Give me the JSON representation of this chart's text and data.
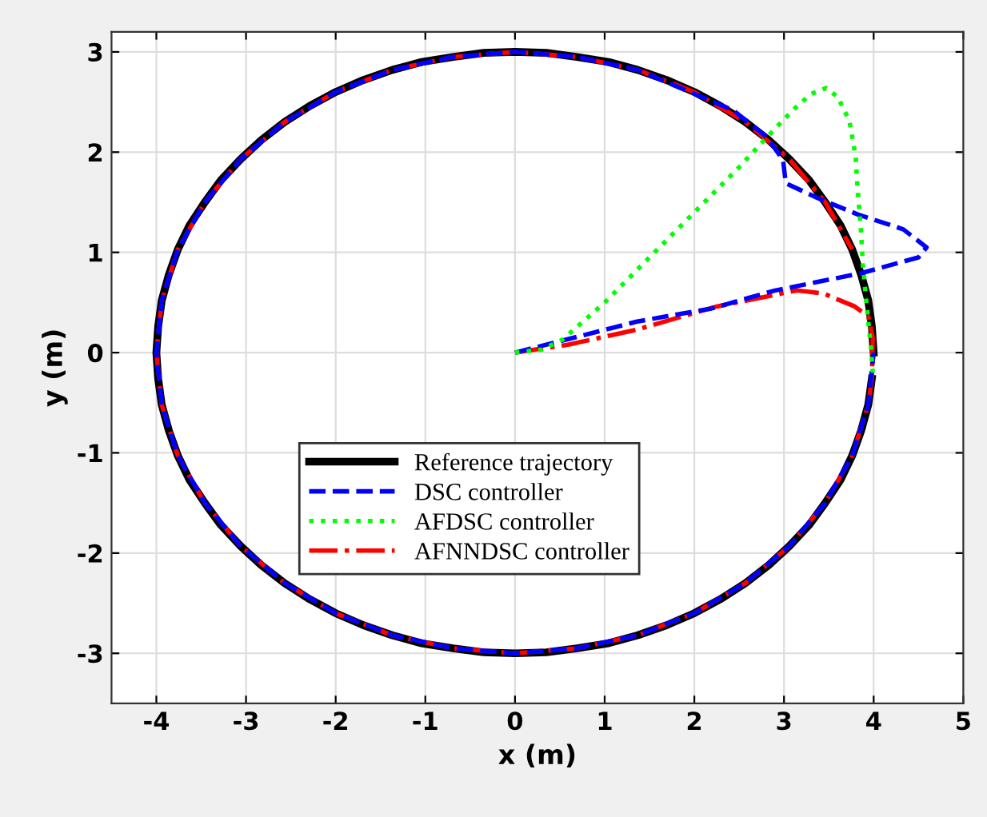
{
  "chart_data": {
    "type": "line",
    "xlabel": "x (m)",
    "ylabel": "y (m)",
    "xlim": [
      -4.5,
      5
    ],
    "ylim": [
      -3.5,
      3.2
    ],
    "xticks": [
      -4,
      -3,
      -2,
      -1,
      0,
      1,
      2,
      3,
      4,
      5
    ],
    "yticks": [
      -3,
      -2,
      -1,
      0,
      1,
      2,
      3
    ],
    "grid": true,
    "legend": "center",
    "marker": "none",
    "series": [
      {
        "name": "DSC controller",
        "color": "#0000ff",
        "line_style": "dashed",
        "x": [
          0,
          0.53,
          1.36,
          2.19,
          2.9,
          3.85,
          4.5,
          4.59,
          4.33,
          3.82,
          3.38,
          3.02,
          2.99,
          2.81,
          2.43,
          1.37,
          0.69,
          0.0,
          -0.69,
          -1.37,
          -2.0,
          -2.57,
          -3.06,
          -3.46,
          -3.76,
          -3.94,
          -4.0,
          -3.94,
          -3.76,
          -3.46,
          -3.06,
          -2.57,
          -2.0,
          -1.37,
          -0.69,
          0.0,
          0.69,
          1.37,
          2.0,
          2.57,
          3.06,
          3.46,
          3.76,
          3.94,
          4.0
        ],
        "values": [
          0,
          0.12,
          0.31,
          0.44,
          0.62,
          0.79,
          0.95,
          1.05,
          1.23,
          1.38,
          1.54,
          1.69,
          1.92,
          2.15,
          2.42,
          2.82,
          2.95,
          3.0,
          2.95,
          2.82,
          2.6,
          2.3,
          1.93,
          1.5,
          1.03,
          0.52,
          0.0,
          -0.52,
          -1.03,
          -1.5,
          -1.93,
          -2.3,
          -2.6,
          -2.82,
          -2.95,
          -3.0,
          -2.95,
          -2.82,
          -2.6,
          -2.3,
          -1.93,
          -1.5,
          -1.03,
          -0.52,
          0.0
        ]
      },
      {
        "name": "AFDSC controller",
        "color": "#00ff00",
        "line_style": "dotted",
        "x": [
          0,
          0.3,
          0.53,
          1.0,
          1.5,
          2.0,
          2.5,
          2.81,
          3.1,
          3.3,
          3.47,
          3.6,
          3.73,
          3.8,
          3.82,
          3.86,
          3.88,
          3.93,
          3.97,
          3.99
        ],
        "values": [
          0,
          0.03,
          0.13,
          0.5,
          0.95,
          1.4,
          1.85,
          2.15,
          2.42,
          2.58,
          2.64,
          2.55,
          2.31,
          1.95,
          1.64,
          1.2,
          0.87,
          0.4,
          0.05,
          -0.2
        ]
      },
      {
        "name": "AFNNDSC controller",
        "color": "#ff0000",
        "line_style": "dashdot",
        "x": [
          0,
          0.6,
          1.36,
          2.25,
          3.14,
          3.44,
          3.79,
          3.94,
          3.99,
          3.98,
          3.94,
          3.76,
          3.46,
          3.06,
          2.57,
          2.0,
          1.37,
          0.69,
          0.0,
          -0.69,
          -1.37,
          -2.0,
          -2.57,
          -3.06,
          -3.46,
          -3.76,
          -3.94,
          -4.0,
          -3.94,
          -3.76,
          -3.46,
          -3.06,
          -2.57,
          -2.0,
          -1.37,
          -0.69,
          0.0,
          0.69,
          1.37,
          2.0,
          2.57,
          3.06,
          3.46,
          3.76
        ],
        "values": [
          0,
          0.08,
          0.23,
          0.46,
          0.62,
          0.59,
          0.46,
          0.36,
          0.15,
          -0.26,
          -0.52,
          -1.03,
          -1.5,
          -1.93,
          -2.3,
          -2.6,
          -2.82,
          -2.95,
          -3.0,
          -2.95,
          -2.82,
          -2.6,
          -2.3,
          -1.93,
          -1.5,
          -1.03,
          -0.52,
          0.0,
          0.52,
          1.03,
          1.5,
          1.93,
          2.3,
          2.6,
          2.82,
          2.95,
          3.0,
          2.95,
          2.82,
          2.6,
          2.3,
          1.93,
          1.5,
          1.03
        ]
      },
      {
        "name": "Reference trajectory",
        "color": "#000000",
        "line_style": "solid",
        "x": [
          4.0,
          3.98,
          3.94,
          3.86,
          3.76,
          3.63,
          3.46,
          3.28,
          3.06,
          2.83,
          2.57,
          2.29,
          2.0,
          1.69,
          1.37,
          1.04,
          0.69,
          0.35,
          0.0,
          -0.35,
          -0.69,
          -1.04,
          -1.37,
          -1.69,
          -2.0,
          -2.29,
          -2.57,
          -2.83,
          -3.06,
          -3.28,
          -3.46,
          -3.63,
          -3.76,
          -3.86,
          -3.94,
          -3.98,
          -4.0,
          -3.98,
          -3.94,
          -3.86,
          -3.76,
          -3.63,
          -3.46,
          -3.28,
          -3.06,
          -2.83,
          -2.57,
          -2.29,
          -2.0,
          -1.69,
          -1.37,
          -1.04,
          -0.69,
          -0.35,
          0.0,
          0.35,
          0.69,
          1.04,
          1.37,
          1.69,
          2.0,
          2.29,
          2.57,
          2.83,
          3.06,
          3.28,
          3.46,
          3.63,
          3.76,
          3.86,
          3.94,
          3.98
        ],
        "values": [
          0.0,
          0.26,
          0.52,
          0.78,
          1.03,
          1.27,
          1.5,
          1.72,
          1.93,
          2.12,
          2.3,
          2.46,
          2.6,
          2.72,
          2.82,
          2.9,
          2.95,
          2.99,
          3.0,
          2.99,
          2.95,
          2.9,
          2.82,
          2.72,
          2.6,
          2.46,
          2.3,
          2.12,
          1.93,
          1.72,
          1.5,
          1.27,
          1.03,
          0.78,
          0.52,
          0.26,
          0.0,
          -0.26,
          -0.52,
          -0.78,
          -1.03,
          -1.27,
          -1.5,
          -1.72,
          -1.93,
          -2.12,
          -2.3,
          -2.46,
          -2.6,
          -2.72,
          -2.82,
          -2.9,
          -2.95,
          -2.99,
          -3.0,
          -2.99,
          -2.95,
          -2.9,
          -2.82,
          -2.72,
          -2.6,
          -2.46,
          -2.3,
          -2.12,
          -1.93,
          -1.72,
          -1.5,
          -1.27,
          -1.03,
          -0.78,
          -0.52,
          -0.26
        ]
      }
    ]
  }
}
